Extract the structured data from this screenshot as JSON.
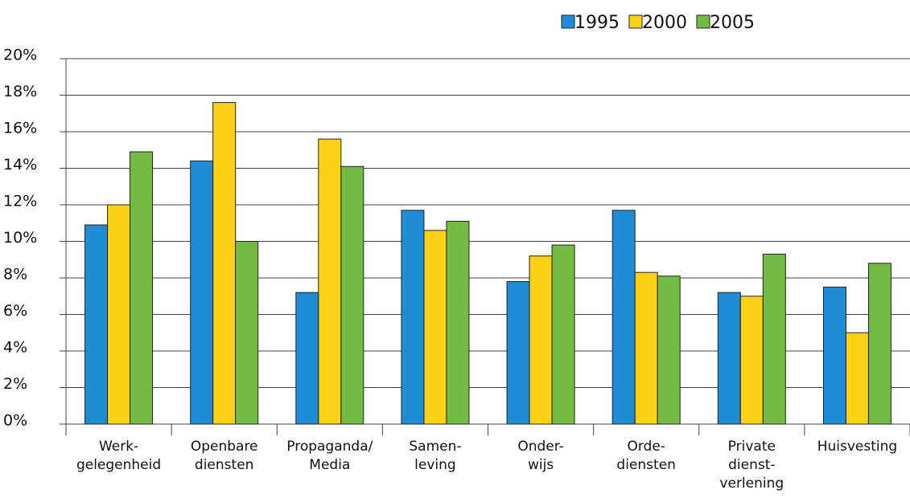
{
  "chart_data": {
    "type": "bar",
    "categories": [
      "Werk-\ngelegenheid",
      "Openbare\ndiensten",
      "Propaganda/\nMedia",
      "Samen-\nleving",
      "Onder-\nwijs",
      "Orde-\ndiensten",
      "Private\ndienst-\nverlening",
      "Huisvesting"
    ],
    "series": [
      {
        "name": "1995",
        "color": "#1f8dd6",
        "values": [
          10.9,
          14.4,
          7.2,
          11.7,
          7.8,
          11.7,
          7.2,
          7.5
        ]
      },
      {
        "name": "2000",
        "color": "#fdd116",
        "values": [
          12.0,
          17.6,
          15.6,
          10.6,
          9.2,
          8.3,
          7.0,
          5.0
        ]
      },
      {
        "name": "2005",
        "color": "#74bb44",
        "values": [
          14.9,
          10.0,
          14.1,
          11.1,
          9.8,
          8.1,
          9.3,
          8.8
        ]
      }
    ],
    "ylim": [
      0,
      20
    ],
    "yticks": [
      {
        "value": 0,
        "label": "0%"
      },
      {
        "value": 2,
        "label": "2%"
      },
      {
        "value": 4,
        "label": "4%"
      },
      {
        "value": 6,
        "label": "6%"
      },
      {
        "value": 8,
        "label": "8%"
      },
      {
        "value": 10,
        "label": "10%"
      },
      {
        "value": 12,
        "label": "12%"
      },
      {
        "value": 14,
        "label": "14%"
      },
      {
        "value": 16,
        "label": "16%"
      },
      {
        "value": 18,
        "label": "18%"
      },
      {
        "value": 20,
        "label": "20%"
      }
    ],
    "grid": true,
    "legend": "top-right"
  }
}
